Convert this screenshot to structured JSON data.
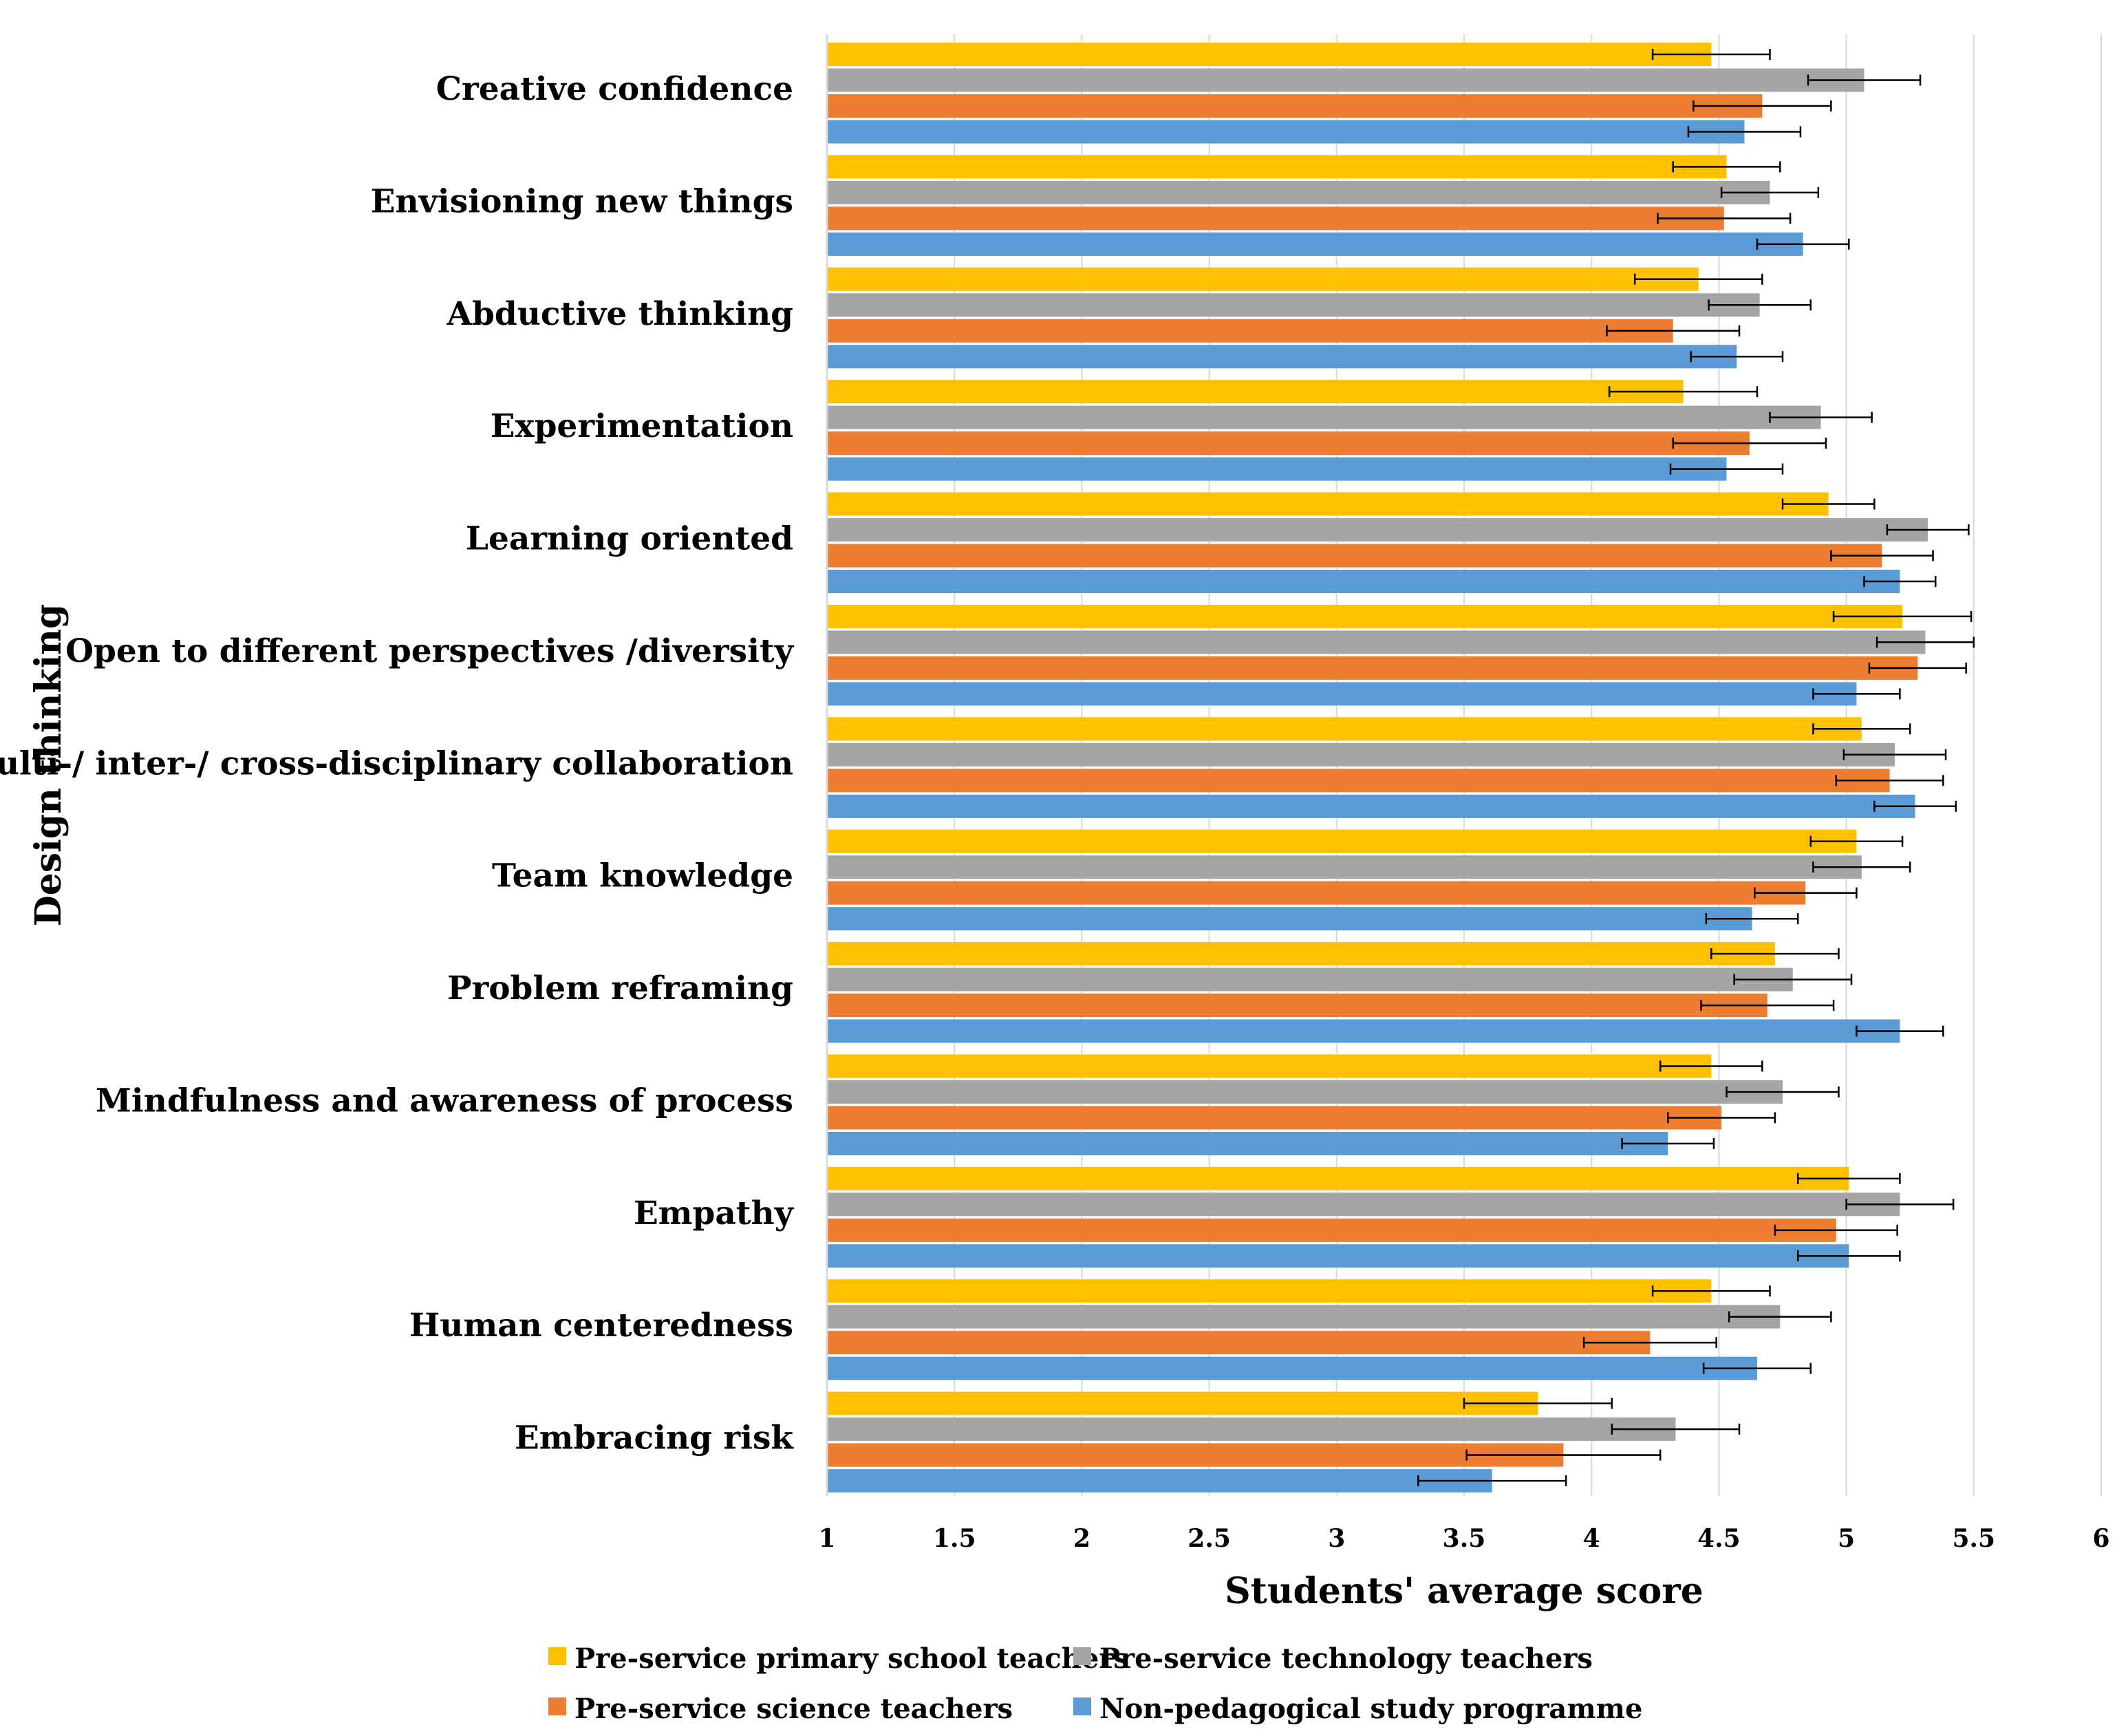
{
  "chart_data": {
    "type": "bar",
    "orientation": "horizontal",
    "xlabel": "Students' average score",
    "ylabel": "Design thinking",
    "xlim": [
      1,
      6
    ],
    "xticks": [
      "1",
      "1.5",
      "2",
      "2.5",
      "3",
      "3.5",
      "4",
      "4.5",
      "5",
      "5.5",
      "6"
    ],
    "grid": "vertical",
    "legend_position": "bottom",
    "categories": [
      "Creative confidence",
      "Envisioning new things",
      "Abductive thinking",
      "Experimentation",
      "Learning oriented",
      "Open to different perspectives /diversity",
      "Multi-/ inter-/ cross-disciplinary collaboration",
      "Team knowledge",
      "Problem reframing",
      "Mindfulness and awareness of process",
      "Empathy",
      "Human centeredness",
      "Embracing risk"
    ],
    "series": [
      {
        "name": "Pre-service primary school teachers",
        "color": "#FFC000",
        "values": [
          4.47,
          4.53,
          4.42,
          4.36,
          4.93,
          5.22,
          5.06,
          5.04,
          4.72,
          4.47,
          5.01,
          4.47,
          3.79
        ],
        "errors": [
          0.23,
          0.21,
          0.25,
          0.29,
          0.18,
          0.27,
          0.19,
          0.18,
          0.25,
          0.2,
          0.2,
          0.23,
          0.29
        ]
      },
      {
        "name": "Pre-service technology teachers",
        "color": "#A5A5A5",
        "values": [
          5.07,
          4.7,
          4.66,
          4.9,
          5.32,
          5.31,
          5.19,
          5.06,
          4.79,
          4.75,
          5.21,
          4.74,
          4.33
        ],
        "errors": [
          0.22,
          0.19,
          0.2,
          0.2,
          0.16,
          0.19,
          0.2,
          0.19,
          0.23,
          0.22,
          0.21,
          0.2,
          0.25
        ]
      },
      {
        "name": "Pre-service science teachers",
        "color": "#ED7D31",
        "values": [
          4.67,
          4.52,
          4.32,
          4.62,
          5.14,
          5.28,
          5.17,
          4.84,
          4.69,
          4.51,
          4.96,
          4.23,
          3.89
        ],
        "errors": [
          0.27,
          0.26,
          0.26,
          0.3,
          0.2,
          0.19,
          0.21,
          0.2,
          0.26,
          0.21,
          0.24,
          0.26,
          0.38
        ]
      },
      {
        "name": "Non-pedagogical study programme",
        "color": "#5B9BD5",
        "values": [
          4.6,
          4.83,
          4.57,
          4.53,
          5.21,
          5.04,
          5.27,
          4.63,
          5.21,
          4.3,
          5.01,
          4.65,
          3.61
        ],
        "errors": [
          0.22,
          0.18,
          0.18,
          0.22,
          0.14,
          0.17,
          0.16,
          0.18,
          0.17,
          0.18,
          0.2,
          0.21,
          0.29
        ]
      }
    ]
  }
}
